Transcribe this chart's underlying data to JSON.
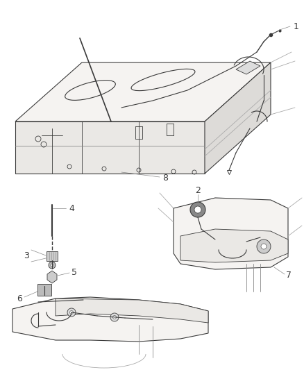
{
  "background_color": "#ffffff",
  "line_color": "#3a3a3a",
  "label_color": "#3a3a3a",
  "leader_color": "#888888",
  "figsize": [
    4.38,
    5.33
  ],
  "dpi": 100,
  "face_color_light": "#f5f3f1",
  "face_color_mid": "#eae8e5",
  "face_color_dark": "#dddbd8"
}
